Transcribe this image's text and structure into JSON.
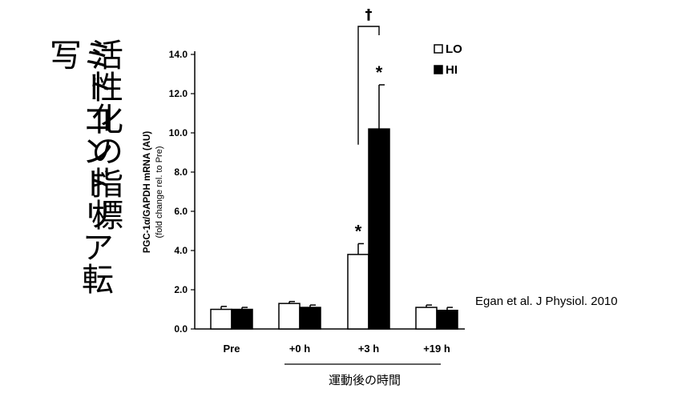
{
  "slide": {
    "title_line1": "ミトコンドリア転写",
    "title_line2": "活性化の指標",
    "citation": "Egan et al. J Physiol. 2010"
  },
  "chart_data": {
    "type": "bar",
    "categories": [
      "Pre",
      "+0 h",
      "+3 h",
      "+19 h"
    ],
    "series": [
      {
        "name": "LO",
        "values": [
          1.0,
          1.3,
          3.8,
          1.1
        ],
        "errors": [
          0.15,
          0.1,
          0.55,
          0.12
        ],
        "color": "#ffffff"
      },
      {
        "name": "HI",
        "values": [
          1.0,
          1.1,
          10.2,
          0.95
        ],
        "errors": [
          0.1,
          0.12,
          2.25,
          0.15
        ],
        "color": "#000000"
      }
    ],
    "ylabel": "PGC-1α/GAPDH mRNA (AU)",
    "ylabel_sub": "(fold change rel. to Pre)",
    "yticks": [
      "0.0",
      "2.0",
      "4.0",
      "6.0",
      "8.0",
      "10.0",
      "12.0",
      "14.0"
    ],
    "ylim": [
      0,
      14
    ],
    "xlabel": "運動後の時間",
    "significance": {
      "star": "*",
      "dagger": "†"
    },
    "legend_position": "top-right"
  }
}
